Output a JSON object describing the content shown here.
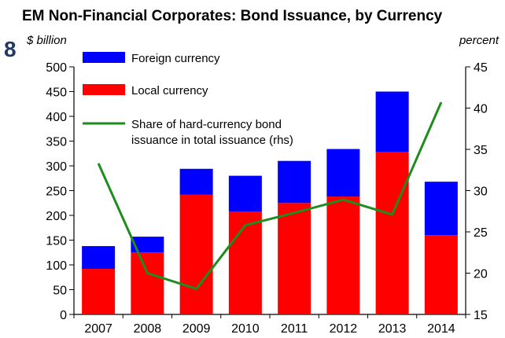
{
  "figure": {
    "marker": "8",
    "title": "EM Non-Financial Corporates: Bond Issuance, by Currency"
  },
  "chart_data": {
    "type": "bar",
    "stacked": true,
    "categories": [
      "2007",
      "2008",
      "2009",
      "2010",
      "2011",
      "2012",
      "2013",
      "2014"
    ],
    "series": [
      {
        "name": "Local currency",
        "axis": "left",
        "color": "#ff0000",
        "values": [
          92,
          125,
          242,
          208,
          225,
          238,
          328,
          160
        ]
      },
      {
        "name": "Foreign currency",
        "axis": "left",
        "color": "#0000ff",
        "values": [
          46,
          32,
          52,
          72,
          85,
          96,
          122,
          108
        ]
      },
      {
        "name": "Share of hard-currency bond issuance in total issuance (rhs)",
        "type": "line",
        "axis": "right",
        "color": "#1e8c1e",
        "values": [
          33.3,
          20.0,
          18.1,
          25.8,
          27.3,
          28.9,
          27.1,
          40.7
        ]
      }
    ],
    "legend": {
      "position": "top-left",
      "items": [
        {
          "name": "Foreign currency",
          "color": "#0000ff",
          "kind": "bar"
        },
        {
          "name": "Local currency",
          "color": "#ff0000",
          "kind": "bar"
        },
        {
          "name": "Share of hard-currency bond",
          "name_line2": "issuance in total issuance (rhs)",
          "color": "#1e8c1e",
          "kind": "line"
        }
      ]
    },
    "y_left": {
      "unit_label": "$ billion",
      "range": [
        0,
        500
      ],
      "ticks": [
        0,
        50,
        100,
        150,
        200,
        250,
        300,
        350,
        400,
        450,
        500
      ]
    },
    "y_right": {
      "unit_label": "percent",
      "range": [
        15,
        45
      ],
      "ticks": [
        15,
        20,
        25,
        30,
        35,
        40,
        45
      ]
    },
    "grid": false
  }
}
